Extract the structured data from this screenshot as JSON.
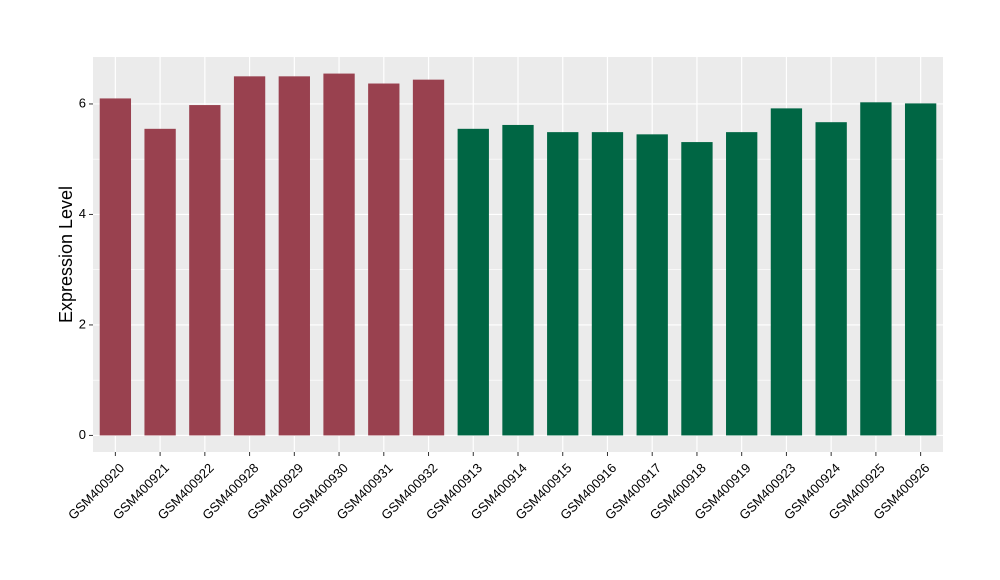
{
  "chart_data": {
    "type": "bar",
    "title": "",
    "xlabel": "",
    "ylabel": "Expression Level",
    "ylim": [
      -0.3,
      6.85
    ],
    "yticks": [
      0,
      2,
      4,
      6
    ],
    "grid": true,
    "legend": "none",
    "categories": [
      "GSM400920",
      "GSM400921",
      "GSM400922",
      "GSM400928",
      "GSM400929",
      "GSM400930",
      "GSM400931",
      "GSM400932",
      "GSM400913",
      "GSM400914",
      "GSM400915",
      "GSM400916",
      "GSM400917",
      "GSM400918",
      "GSM400919",
      "GSM400923",
      "GSM400924",
      "GSM400925",
      "GSM400926"
    ],
    "values": [
      6.1,
      5.55,
      5.98,
      6.5,
      6.5,
      6.55,
      6.37,
      6.44,
      5.55,
      5.62,
      5.49,
      5.49,
      5.45,
      5.31,
      5.49,
      5.92,
      5.67,
      6.03,
      6.01
    ],
    "groups": [
      1,
      1,
      1,
      1,
      1,
      1,
      1,
      1,
      2,
      2,
      2,
      2,
      2,
      2,
      2,
      2,
      2,
      2,
      2
    ],
    "colors": {
      "group1": "#99414f",
      "group2": "#006644",
      "panel": "#ebebeb",
      "grid": "#ffffff"
    }
  }
}
